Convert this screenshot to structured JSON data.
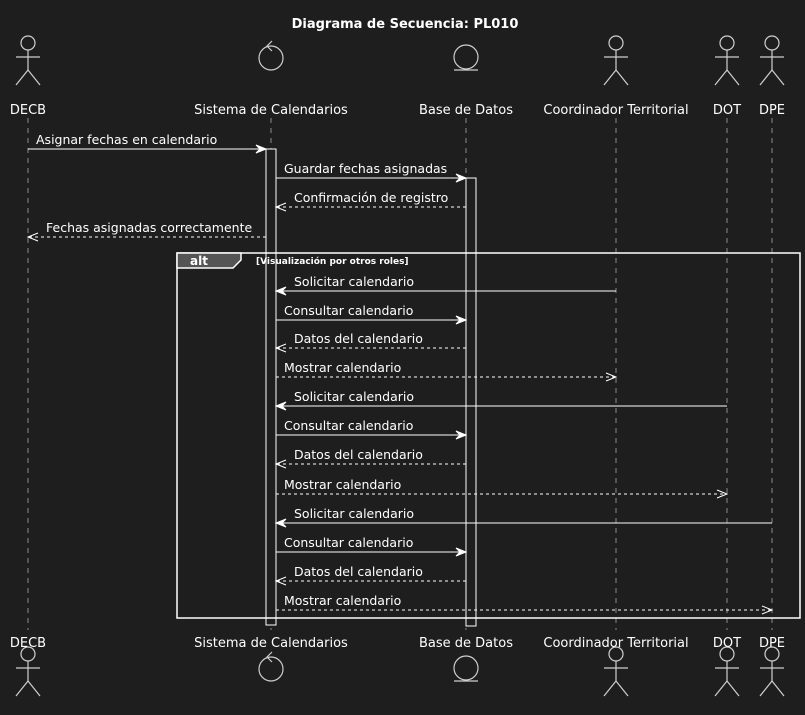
{
  "title": "Diagrama de Secuencia: PL010",
  "participants": [
    {
      "id": "decb",
      "name": "DECB",
      "kind": "actor"
    },
    {
      "id": "sistema",
      "name": "Sistema de Calendarios",
      "kind": "control"
    },
    {
      "id": "bd",
      "name": "Base de Datos",
      "kind": "entity"
    },
    {
      "id": "coord",
      "name": "Coordinador Territorial",
      "kind": "actor"
    },
    {
      "id": "dot",
      "name": "DOT",
      "kind": "actor"
    },
    {
      "id": "dpe",
      "name": "DPE",
      "kind": "actor"
    }
  ],
  "messages": [
    {
      "from": "decb",
      "to": "sistema",
      "label": "Asignar fechas en calendario",
      "style": "solid"
    },
    {
      "from": "sistema",
      "to": "bd",
      "label": "Guardar fechas asignadas",
      "style": "solid"
    },
    {
      "from": "bd",
      "to": "sistema",
      "label": "Confirmación de registro",
      "style": "dashed"
    },
    {
      "from": "sistema",
      "to": "decb",
      "label": "Fechas asignadas correctamente",
      "style": "dashed"
    },
    {
      "from": "coord",
      "to": "sistema",
      "label": "Solicitar calendario",
      "style": "solid"
    },
    {
      "from": "sistema",
      "to": "bd",
      "label": "Consultar calendario",
      "style": "solid"
    },
    {
      "from": "bd",
      "to": "sistema",
      "label": "Datos del calendario",
      "style": "dashed"
    },
    {
      "from": "sistema",
      "to": "coord",
      "label": "Mostrar calendario",
      "style": "dashed"
    },
    {
      "from": "dot",
      "to": "sistema",
      "label": "Solicitar calendario",
      "style": "solid"
    },
    {
      "from": "sistema",
      "to": "bd",
      "label": "Consultar calendario",
      "style": "solid"
    },
    {
      "from": "bd",
      "to": "sistema",
      "label": "Datos del calendario",
      "style": "dashed"
    },
    {
      "from": "sistema",
      "to": "dot",
      "label": "Mostrar calendario",
      "style": "dashed"
    },
    {
      "from": "dpe",
      "to": "sistema",
      "label": "Solicitar calendario",
      "style": "solid"
    },
    {
      "from": "sistema",
      "to": "bd",
      "label": "Consultar calendario",
      "style": "solid"
    },
    {
      "from": "bd",
      "to": "sistema",
      "label": "Datos del calendario",
      "style": "dashed"
    },
    {
      "from": "sistema",
      "to": "dpe",
      "label": "Mostrar calendario",
      "style": "dashed"
    }
  ],
  "fragment": {
    "keyword": "alt",
    "condition": "[Visualización por otros roles]"
  },
  "colors": {
    "background": "#1e1e1e",
    "foreground": "#ffffff",
    "lifeline": "#8a8a8a"
  }
}
